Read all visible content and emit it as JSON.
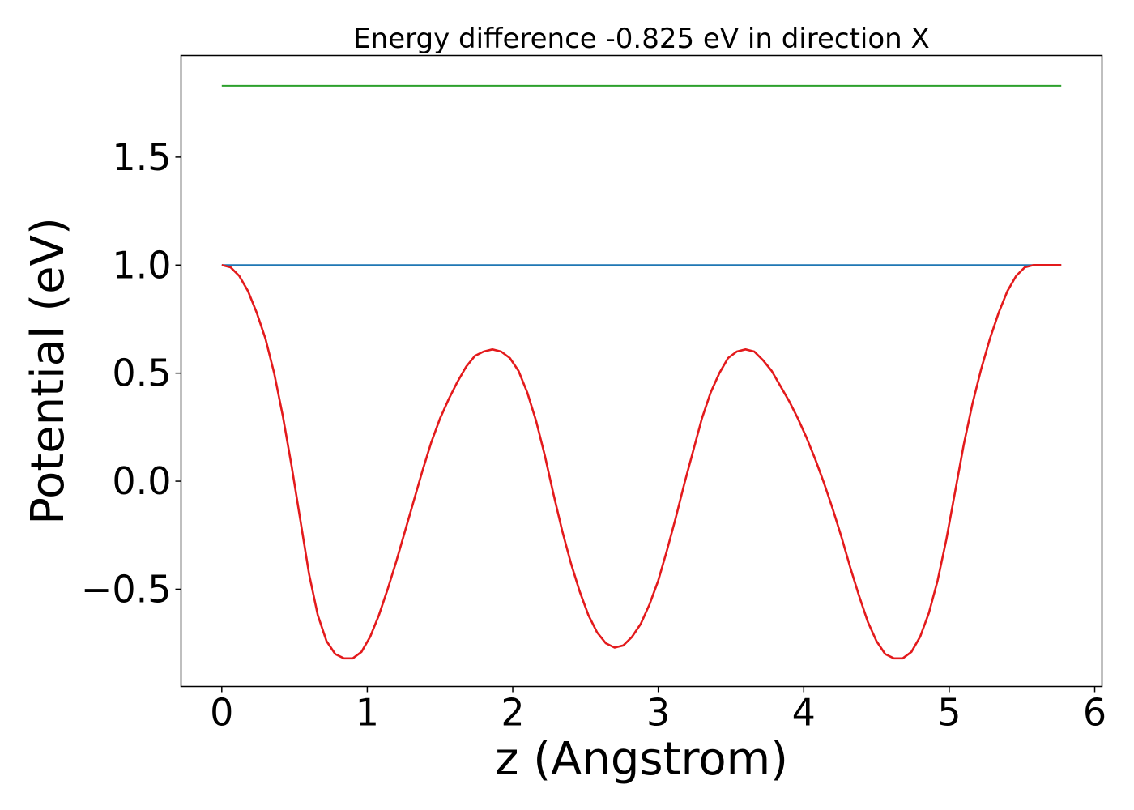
{
  "chart_data": {
    "type": "line",
    "title": "Energy difference -0.825 eV in direction X",
    "xlabel": "z (Angstrom)",
    "ylabel": "Potential (eV)",
    "xlim": [
      -0.28,
      6.05
    ],
    "ylim": [
      -0.95,
      1.97
    ],
    "xticks": [
      0,
      1,
      2,
      3,
      4,
      5,
      6
    ],
    "xtick_labels": [
      "0",
      "1",
      "2",
      "3",
      "4",
      "5",
      "6"
    ],
    "yticks": [
      -0.5,
      0.0,
      0.5,
      1.0,
      1.5
    ],
    "ytick_labels": [
      "−0.5",
      "0.0",
      "0.5",
      "1.0",
      "1.5"
    ],
    "grid": false,
    "series": [
      {
        "color": "#2ca02c",
        "x": [
          0,
          5.77
        ],
        "y": [
          1.83,
          1.83
        ]
      },
      {
        "color": "#1f77b4",
        "x": [
          0,
          5.77
        ],
        "y": [
          1.0,
          1.0
        ]
      },
      {
        "color": "#e31a1c",
        "x": [
          0.0,
          0.06,
          0.12,
          0.18,
          0.24,
          0.3,
          0.36,
          0.42,
          0.48,
          0.54,
          0.6,
          0.66,
          0.72,
          0.78,
          0.84,
          0.9,
          0.96,
          1.02,
          1.08,
          1.14,
          1.2,
          1.26,
          1.32,
          1.38,
          1.44,
          1.5,
          1.56,
          1.62,
          1.68,
          1.74,
          1.8,
          1.86,
          1.92,
          1.98,
          2.04,
          2.1,
          2.16,
          2.22,
          2.28,
          2.34,
          2.4,
          2.46,
          2.52,
          2.58,
          2.64,
          2.7,
          2.76,
          2.82,
          2.88,
          2.94,
          3.0,
          3.06,
          3.12,
          3.18,
          3.24,
          3.3,
          3.36,
          3.42,
          3.48,
          3.54,
          3.6,
          3.66,
          3.72,
          3.78,
          3.84,
          3.9,
          3.96,
          4.02,
          4.08,
          4.14,
          4.2,
          4.26,
          4.32,
          4.38,
          4.44,
          4.5,
          4.56,
          4.62,
          4.68,
          4.74,
          4.8,
          4.86,
          4.92,
          4.98,
          5.04,
          5.1,
          5.16,
          5.22,
          5.28,
          5.34,
          5.4,
          5.46,
          5.52,
          5.58,
          5.64,
          5.7,
          5.77
        ],
        "y": [
          1.0,
          0.99,
          0.95,
          0.88,
          0.78,
          0.66,
          0.5,
          0.3,
          0.07,
          -0.18,
          -0.43,
          -0.62,
          -0.74,
          -0.8,
          -0.82,
          -0.82,
          -0.79,
          -0.72,
          -0.62,
          -0.5,
          -0.37,
          -0.23,
          -0.09,
          0.05,
          0.18,
          0.29,
          0.38,
          0.46,
          0.53,
          0.58,
          0.6,
          0.61,
          0.6,
          0.57,
          0.51,
          0.41,
          0.28,
          0.12,
          -0.06,
          -0.23,
          -0.38,
          -0.51,
          -0.62,
          -0.7,
          -0.75,
          -0.77,
          -0.76,
          -0.72,
          -0.66,
          -0.57,
          -0.46,
          -0.32,
          -0.17,
          -0.01,
          0.14,
          0.29,
          0.41,
          0.5,
          0.57,
          0.6,
          0.61,
          0.6,
          0.56,
          0.51,
          0.44,
          0.37,
          0.29,
          0.2,
          0.1,
          -0.01,
          -0.13,
          -0.26,
          -0.4,
          -0.53,
          -0.65,
          -0.74,
          -0.8,
          -0.82,
          -0.82,
          -0.79,
          -0.72,
          -0.61,
          -0.46,
          -0.27,
          -0.05,
          0.17,
          0.36,
          0.52,
          0.66,
          0.78,
          0.88,
          0.95,
          0.99,
          1.0,
          1.0,
          1.0,
          1.0
        ]
      }
    ]
  }
}
